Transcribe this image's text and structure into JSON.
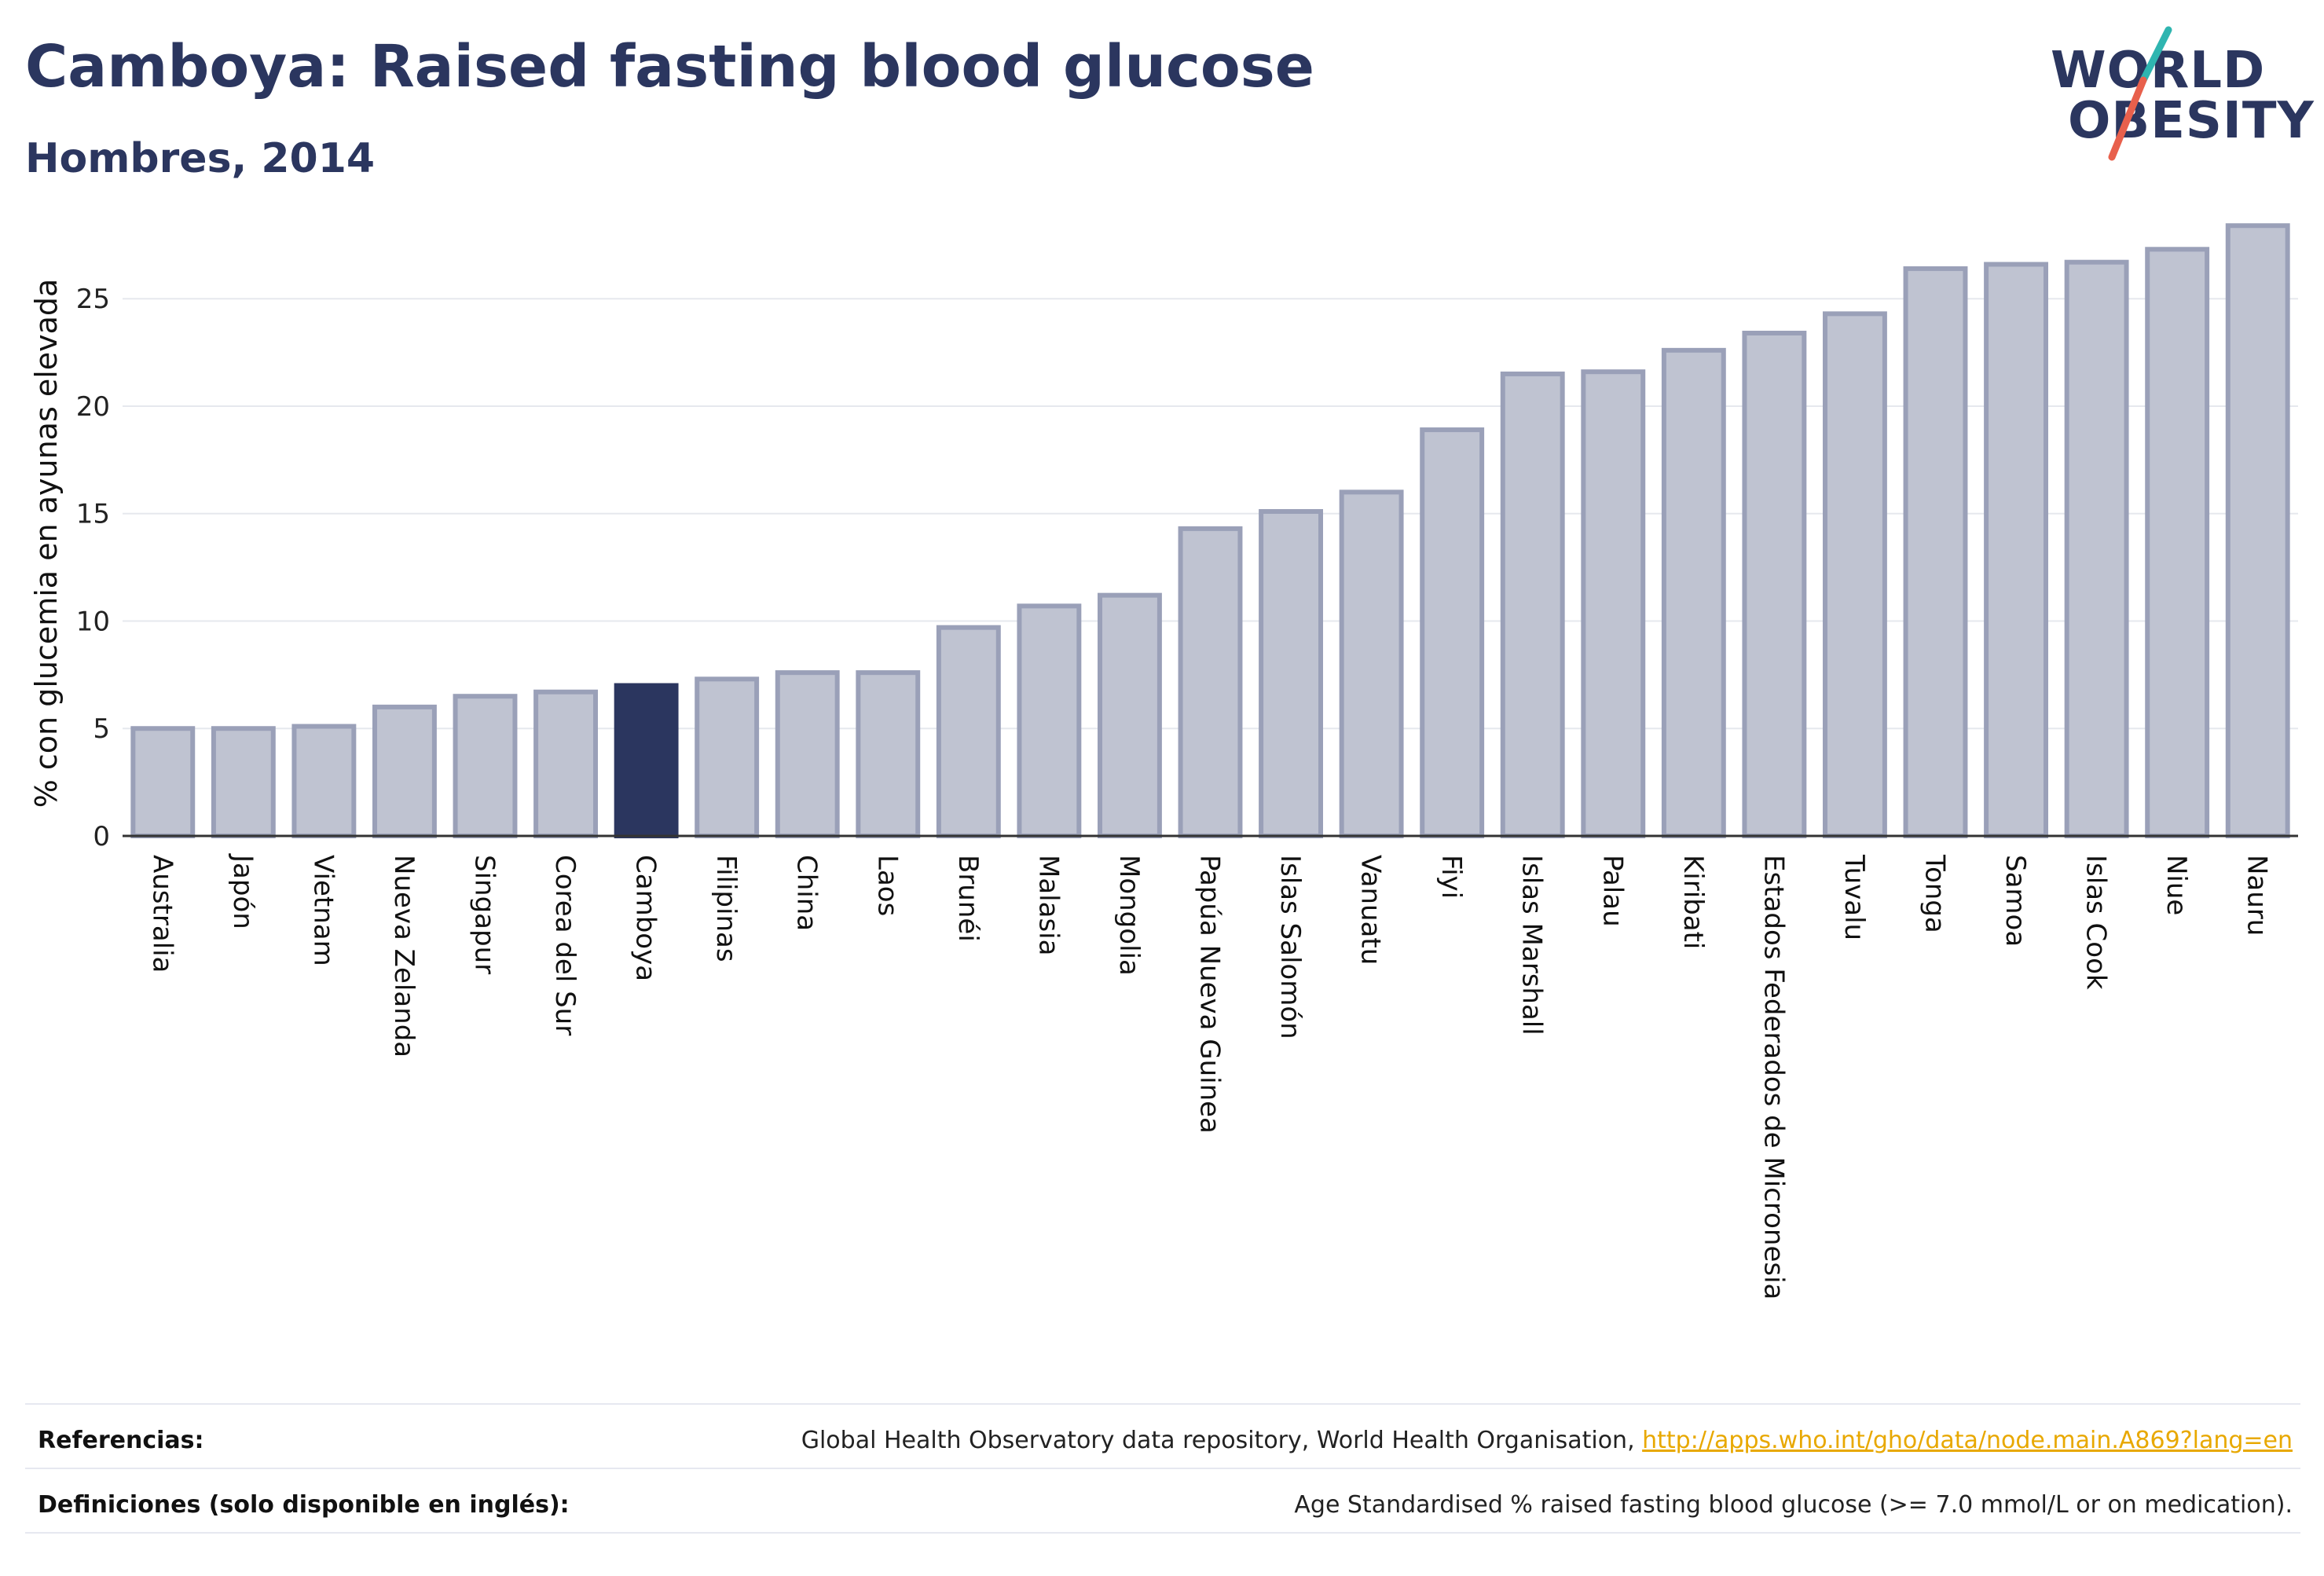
{
  "header": {
    "title": "Camboya: Raised fasting blood glucose",
    "subtitle": "Hombres, 2014"
  },
  "logo": {
    "line1": "WORLD",
    "line2": "OBESITY",
    "colors": {
      "text": "#2b365f",
      "slash_teal": "#2fb5b0",
      "slash_coral": "#e8604c"
    }
  },
  "footer": {
    "references_label": "Referencias:",
    "references_text": "Global Health Observatory data repository, World Health Organisation, ",
    "references_link": "http://apps.who.int/gho/data/node.main.A869?lang=en",
    "definitions_label": "Definiciones (solo disponible en inglés):",
    "definitions_text": "Age Standardised % raised fasting blood glucose (>= 7.0 mmol/L or on medication)."
  },
  "chart_data": {
    "type": "bar",
    "title": "Camboya: Raised fasting blood glucose",
    "subtitle": "Hombres, 2014",
    "xlabel": "",
    "ylabel": "% con glucemia en ayunas elevada",
    "ylim": [
      0,
      28.7
    ],
    "yticks": [
      0,
      5,
      10,
      15,
      20,
      25
    ],
    "grid": true,
    "highlight": "Camboya",
    "colors": {
      "bar": "#bfc3d1",
      "bar_edge": "#9aa0b8",
      "highlight": "#2b365f",
      "grid": "#e6e8ee",
      "axis": "#333333"
    },
    "categories": [
      "Australia",
      "Japón",
      "Vietnam",
      "Nueva Zelanda",
      "Singapur",
      "Corea del Sur",
      "Camboya",
      "Filipinas",
      "China",
      "Laos",
      "Brunéi",
      "Malasia",
      "Mongolia",
      "Papúa Nueva Guinea",
      "Islas Salomón",
      "Vanuatu",
      "Fiyi",
      "Islas Marshall",
      "Palau",
      "Kiribati",
      "Estados Federados de Micronesia",
      "Tuvalu",
      "Tonga",
      "Samoa",
      "Islas Cook",
      "Niue",
      "Nauru"
    ],
    "values": [
      5.0,
      5.0,
      5.1,
      6.0,
      6.5,
      6.7,
      7.0,
      7.3,
      7.6,
      7.6,
      9.7,
      10.7,
      11.2,
      14.3,
      15.1,
      16.0,
      18.9,
      21.5,
      21.6,
      22.6,
      23.4,
      24.3,
      26.4,
      26.6,
      26.7,
      27.3,
      28.4
    ]
  }
}
